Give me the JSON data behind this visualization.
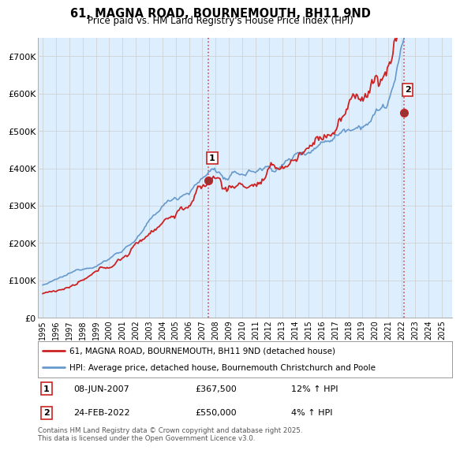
{
  "title": "61, MAGNA ROAD, BOURNEMOUTH, BH11 9ND",
  "subtitle": "Price paid vs. HM Land Registry's House Price Index (HPI)",
  "ylim": [
    0,
    750000
  ],
  "hpi_color": "#6699cc",
  "hpi_fill_color": "#ddeeff",
  "price_color": "#cc2222",
  "vline_color": "#cc2222",
  "marker1_year": 2007.44,
  "marker1_price": 367500,
  "marker2_year": 2022.15,
  "marker2_price": 550000,
  "legend1": "61, MAGNA ROAD, BOURNEMOUTH, BH11 9ND (detached house)",
  "legend2": "HPI: Average price, detached house, Bournemouth Christchurch and Poole",
  "note1_date": "08-JUN-2007",
  "note1_price": "£367,500",
  "note1_hpi": "12% ↑ HPI",
  "note2_date": "24-FEB-2022",
  "note2_price": "£550,000",
  "note2_hpi": "4% ↑ HPI",
  "footer": "Contains HM Land Registry data © Crown copyright and database right 2025.\nThis data is licensed under the Open Government Licence v3.0.",
  "background_color": "#ffffff",
  "grid_color": "#cccccc"
}
